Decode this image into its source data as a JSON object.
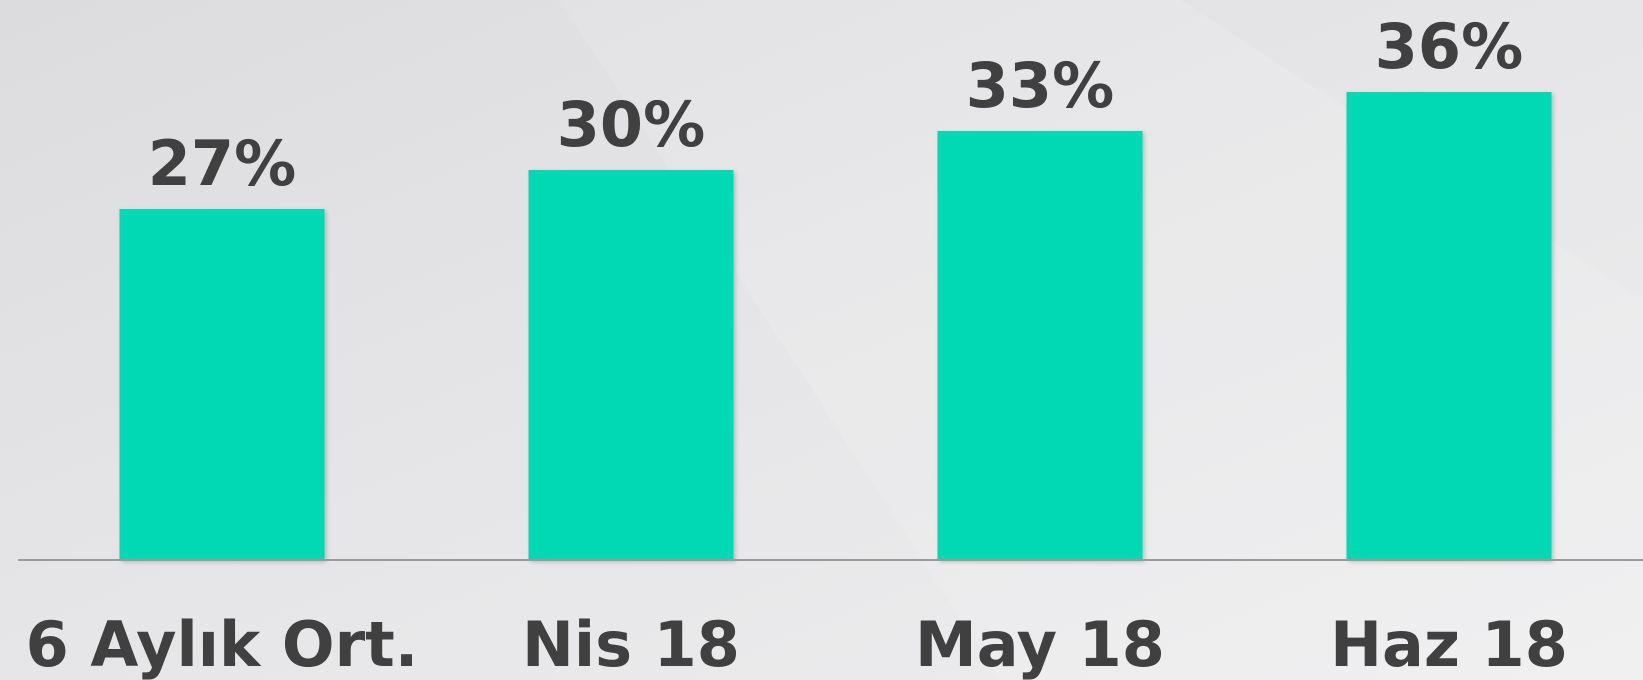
{
  "chart_data": {
    "type": "bar",
    "categories": [
      "6 Aylık Ort.",
      "Nis 18",
      "May 18",
      "Haz 18"
    ],
    "values": [
      27,
      30,
      33,
      36
    ],
    "value_labels": [
      "27%",
      "30%",
      "33%",
      "36%"
    ],
    "color": "#00d9b4"
  }
}
